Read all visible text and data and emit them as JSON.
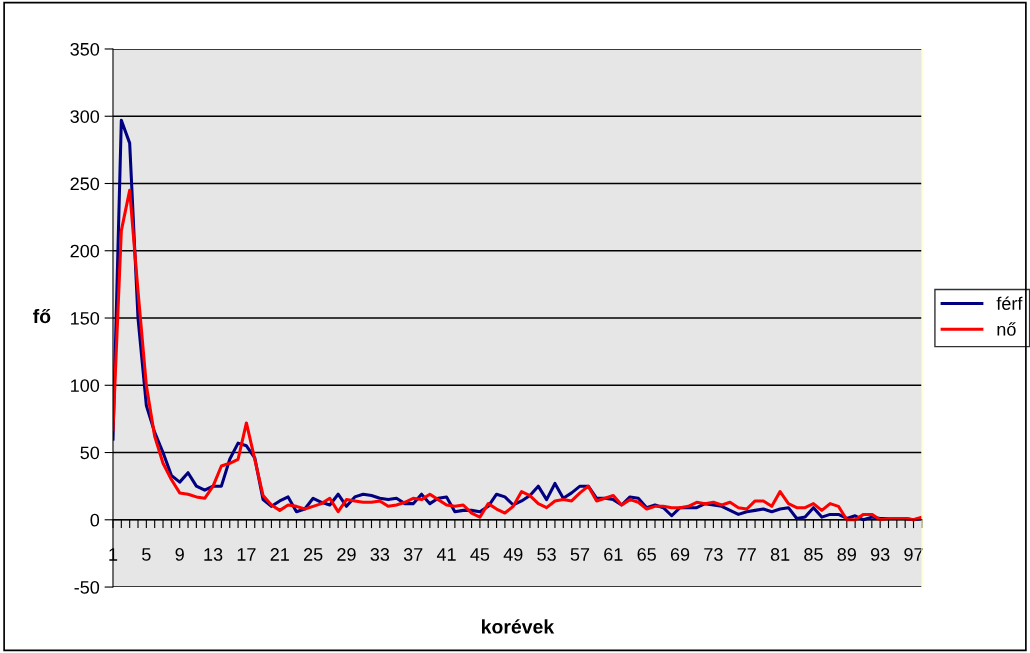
{
  "chart_data": {
    "type": "line",
    "xlabel": "korévek",
    "ylabel": "fő",
    "categories": [
      "1",
      null,
      null,
      null,
      "5",
      null,
      null,
      null,
      "9",
      null,
      null,
      null,
      "13",
      null,
      null,
      null,
      "17",
      null,
      null,
      null,
      "21",
      null,
      null,
      null,
      "25",
      null,
      null,
      null,
      "29",
      null,
      null,
      null,
      "33",
      null,
      null,
      null,
      "37",
      null,
      null,
      null,
      "41",
      null,
      null,
      null,
      "45",
      null,
      null,
      null,
      "49",
      null,
      null,
      null,
      "53",
      null,
      null,
      null,
      "57",
      null,
      null,
      null,
      "61",
      null,
      null,
      null,
      "65",
      null,
      null,
      null,
      "69",
      null,
      null,
      null,
      "73",
      null,
      null,
      null,
      "77",
      null,
      null,
      null,
      "81",
      null,
      null,
      null,
      "85",
      null,
      null,
      null,
      "89",
      null,
      null,
      null,
      "93",
      null,
      null,
      null,
      "97",
      null
    ],
    "series": [
      {
        "name": "férf",
        "color": "#000080",
        "values": [
          60,
          297,
          280,
          150,
          85,
          65,
          50,
          33,
          28,
          35,
          25,
          22,
          25,
          25,
          45,
          57,
          55,
          46,
          15,
          10,
          14,
          17,
          6,
          8,
          16,
          13,
          11,
          19,
          10,
          17,
          19,
          18,
          16,
          15,
          16,
          12,
          12,
          19,
          12,
          16,
          17,
          6,
          7,
          7,
          6,
          10,
          19,
          17,
          11,
          14,
          18,
          25,
          15,
          27,
          16,
          20,
          25,
          25,
          16,
          16,
          15,
          11,
          17,
          16,
          9,
          11,
          9,
          3,
          9,
          9,
          9,
          12,
          11,
          10,
          7,
          4,
          6,
          7,
          8,
          6,
          8,
          9,
          1,
          2,
          9,
          2,
          4,
          4,
          1,
          3,
          0,
          2,
          1,
          1,
          1,
          1,
          0,
          1
        ]
      },
      {
        "name": "nő",
        "color": "#ff0000",
        "values": [
          67,
          215,
          245,
          170,
          100,
          62,
          42,
          30,
          20,
          19,
          17,
          16,
          25,
          40,
          42,
          45,
          72,
          45,
          18,
          11,
          7,
          11,
          10,
          8,
          10,
          12,
          16,
          6,
          15,
          14,
          13,
          13,
          14,
          10,
          11,
          13,
          16,
          15,
          19,
          15,
          11,
          10,
          11,
          5,
          2,
          12,
          8,
          5,
          10,
          21,
          18,
          12,
          9,
          14,
          15,
          14,
          20,
          25,
          14,
          16,
          18,
          11,
          15,
          13,
          8,
          10,
          10,
          9,
          9,
          10,
          13,
          12,
          13,
          11,
          13,
          9,
          8,
          14,
          14,
          10,
          21,
          12,
          9,
          9,
          12,
          7,
          12,
          10,
          0,
          0,
          4,
          4,
          0,
          1,
          1,
          1,
          0,
          2
        ]
      }
    ],
    "ylim": [
      -50,
      350
    ],
    "yticks": [
      -50,
      0,
      50,
      100,
      150,
      200,
      250,
      300,
      350
    ],
    "grid": "y",
    "legend": "right",
    "marker": "none",
    "line_style": "solid"
  }
}
